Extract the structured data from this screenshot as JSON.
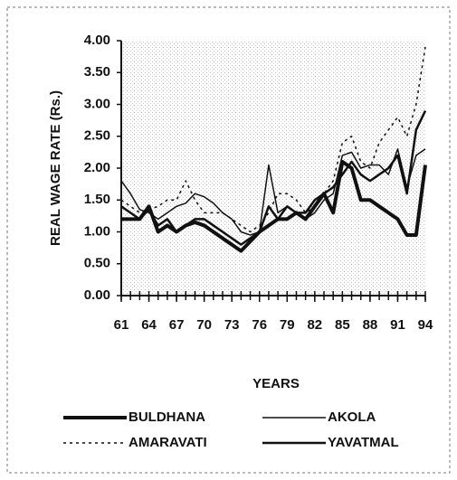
{
  "chart_data": {
    "type": "line",
    "y_label": "REAL WAGE RATE (Rs.)",
    "x_label": "YEARS",
    "x": [
      61,
      62,
      63,
      64,
      65,
      66,
      67,
      68,
      69,
      70,
      71,
      72,
      73,
      74,
      75,
      76,
      77,
      78,
      79,
      80,
      81,
      82,
      83,
      84,
      85,
      86,
      87,
      88,
      89,
      90,
      91,
      92,
      93,
      94
    ],
    "xlim": [
      61,
      94
    ],
    "xticks": [
      61,
      64,
      67,
      70,
      73,
      76,
      79,
      82,
      85,
      88,
      91,
      94
    ],
    "ylim": [
      0,
      4
    ],
    "yticks": [
      {
        "value": 0,
        "label": "0.00"
      },
      {
        "value": 0.5,
        "label": "0.50"
      },
      {
        "value": 1,
        "label": "1.00"
      },
      {
        "value": 1.5,
        "label": "1.50"
      },
      {
        "value": 2,
        "label": "2.00"
      },
      {
        "value": 2.5,
        "label": "2.50"
      },
      {
        "value": 3,
        "label": "3.00"
      },
      {
        "value": 3.5,
        "label": "3.50"
      },
      {
        "value": 4,
        "label": "4.00"
      }
    ],
    "series": [
      {
        "name": "BULDHANA",
        "color": "#111111",
        "style": "thick",
        "values": [
          1.2,
          1.2,
          1.2,
          1.4,
          1.0,
          1.1,
          1.0,
          1.1,
          1.15,
          1.1,
          1.0,
          0.9,
          0.8,
          0.7,
          0.85,
          1.0,
          1.1,
          1.2,
          1.2,
          1.3,
          1.2,
          1.4,
          1.6,
          1.3,
          2.1,
          2.0,
          1.5,
          1.5,
          1.4,
          1.3,
          1.2,
          0.95,
          0.95,
          2.05
        ]
      },
      {
        "name": "AKOLA",
        "color": "#111111",
        "style": "thin",
        "values": [
          1.8,
          1.6,
          1.35,
          1.3,
          1.2,
          1.3,
          1.4,
          1.45,
          1.6,
          1.55,
          1.45,
          1.3,
          1.2,
          1.0,
          0.95,
          1.0,
          2.05,
          1.3,
          1.4,
          1.3,
          1.2,
          1.3,
          1.5,
          1.6,
          2.2,
          2.25,
          2.0,
          2.05,
          2.05,
          1.9,
          2.3,
          1.7,
          2.2,
          2.3
        ]
      },
      {
        "name": "AMARAVATI",
        "color": "#111111",
        "style": "dotted",
        "values": [
          1.5,
          1.4,
          1.3,
          1.35,
          1.4,
          1.5,
          1.5,
          1.8,
          1.5,
          1.3,
          1.3,
          1.3,
          1.2,
          1.1,
          1.0,
          1.1,
          1.3,
          1.6,
          1.6,
          1.5,
          1.3,
          1.4,
          1.6,
          1.8,
          2.4,
          2.5,
          2.1,
          2.0,
          2.4,
          2.6,
          2.8,
          2.5,
          3.0,
          3.9
        ]
      },
      {
        "name": "YAVATMAL",
        "color": "#111111",
        "style": "medium",
        "values": [
          1.4,
          1.3,
          1.2,
          1.35,
          1.1,
          1.2,
          1.0,
          1.1,
          1.2,
          1.2,
          1.1,
          1.0,
          0.9,
          0.8,
          0.9,
          1.0,
          1.4,
          1.2,
          1.4,
          1.3,
          1.3,
          1.5,
          1.6,
          1.7,
          1.9,
          2.1,
          1.9,
          1.8,
          1.9,
          2.0,
          2.2,
          1.6,
          2.6,
          2.9
        ]
      }
    ]
  }
}
